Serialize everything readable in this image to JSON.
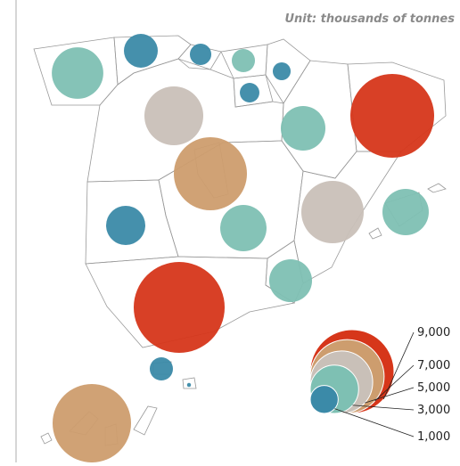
{
  "chart_data": {
    "type": "bubble-map",
    "subtitle": "Unit: thousands of tonnes",
    "bubbles": [
      {
        "value": 3400,
        "color": "#7ec0b3"
      },
      {
        "value": 1470,
        "color": "#3b8aa8"
      },
      {
        "value": 590,
        "color": "#3b8aa8"
      },
      {
        "value": 690,
        "color": "#7ec0b3"
      },
      {
        "value": 410,
        "color": "#3b8aa8"
      },
      {
        "value": 490,
        "color": "#3b8aa8"
      },
      {
        "value": 4440,
        "color": "#c9c0b8"
      },
      {
        "value": 2550,
        "color": "#7ec0b3"
      },
      {
        "value": 9000,
        "color": "#d6361a"
      },
      {
        "value": 6850,
        "color": "#cd9d6e"
      },
      {
        "value": 4990,
        "color": "#c9c0b8"
      },
      {
        "value": 2750,
        "color": "#7ec0b3"
      },
      {
        "value": 1970,
        "color": "#3b8aa8"
      },
      {
        "value": 2750,
        "color": "#7ec0b3"
      },
      {
        "value": 2350,
        "color": "#7ec0b3"
      },
      {
        "value": 10600,
        "color": "#d6361a"
      },
      {
        "value": 690,
        "color": "#3b8aa8"
      },
      {
        "value": 20,
        "color": "#3b8aa8"
      },
      {
        "value": 7890,
        "color": "#cd9d6e"
      }
    ],
    "legend": {
      "values": [
        9000,
        7000,
        5000,
        3000,
        1000
      ],
      "labels": [
        "9,000",
        "7,000",
        "5,000",
        "3,000",
        "1,000"
      ],
      "colors": [
        "#d6361a",
        "#cd9d6e",
        "#c9c0b8",
        "#7ec0b3",
        "#3b8aa8"
      ]
    }
  }
}
